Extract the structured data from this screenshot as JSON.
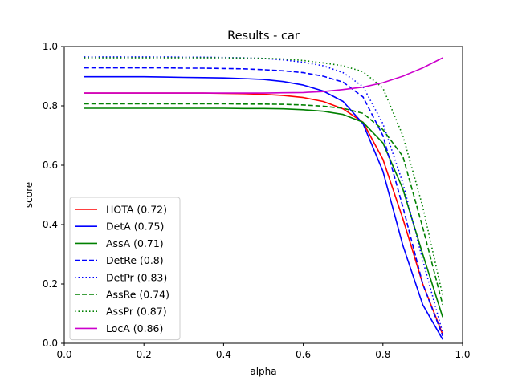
{
  "chart_data": {
    "type": "line",
    "title": "Results - car",
    "xlabel": "alpha",
    "ylabel": "score",
    "xlim": [
      0.0,
      1.0
    ],
    "ylim": [
      0.0,
      1.0
    ],
    "xticks": [
      "0.0",
      "0.2",
      "0.4",
      "0.6",
      "0.8",
      "1.0"
    ],
    "yticks": [
      "0.0",
      "0.2",
      "0.4",
      "0.6",
      "0.8",
      "1.0"
    ],
    "grid": false,
    "legend_position": "lower-left",
    "x": [
      0.05,
      0.1,
      0.15,
      0.2,
      0.25,
      0.3,
      0.35,
      0.4,
      0.45,
      0.5,
      0.55,
      0.6,
      0.65,
      0.7,
      0.75,
      0.8,
      0.85,
      0.9,
      0.95
    ],
    "series": [
      {
        "name": "HOTA (0.72)",
        "color": "#ff0000",
        "style": "solid",
        "values": [
          0.843,
          0.843,
          0.843,
          0.843,
          0.843,
          0.843,
          0.843,
          0.842,
          0.841,
          0.839,
          0.835,
          0.828,
          0.815,
          0.79,
          0.745,
          0.62,
          0.42,
          0.2,
          0.03
        ]
      },
      {
        "name": "DetA (0.75)",
        "color": "#0000ff",
        "style": "solid",
        "values": [
          0.898,
          0.898,
          0.898,
          0.898,
          0.897,
          0.896,
          0.895,
          0.894,
          0.892,
          0.889,
          0.882,
          0.87,
          0.85,
          0.815,
          0.74,
          0.58,
          0.33,
          0.13,
          0.013
        ]
      },
      {
        "name": "AssA (0.71)",
        "color": "#008000",
        "style": "solid",
        "values": [
          0.792,
          0.792,
          0.792,
          0.792,
          0.792,
          0.792,
          0.792,
          0.792,
          0.791,
          0.791,
          0.79,
          0.787,
          0.782,
          0.771,
          0.745,
          0.675,
          0.52,
          0.3,
          0.088
        ]
      },
      {
        "name": "DetRe (0.8)",
        "color": "#0000ff",
        "style": "dashed",
        "values": [
          0.928,
          0.928,
          0.928,
          0.928,
          0.928,
          0.927,
          0.927,
          0.926,
          0.925,
          0.922,
          0.918,
          0.912,
          0.9,
          0.88,
          0.83,
          0.7,
          0.46,
          0.2,
          0.025
        ]
      },
      {
        "name": "DetPr (0.83)",
        "color": "#0000ff",
        "style": "dotted",
        "values": [
          0.965,
          0.965,
          0.965,
          0.965,
          0.965,
          0.964,
          0.964,
          0.963,
          0.962,
          0.96,
          0.955,
          0.947,
          0.935,
          0.912,
          0.865,
          0.74,
          0.54,
          0.28,
          0.035
        ]
      },
      {
        "name": "AssRe (0.74)",
        "color": "#008000",
        "style": "dashed",
        "values": [
          0.807,
          0.807,
          0.807,
          0.807,
          0.807,
          0.807,
          0.807,
          0.807,
          0.806,
          0.806,
          0.805,
          0.803,
          0.799,
          0.792,
          0.775,
          0.72,
          0.63,
          0.39,
          0.13
        ]
      },
      {
        "name": "AssPr (0.87)",
        "color": "#008000",
        "style": "dotted",
        "values": [
          0.962,
          0.962,
          0.962,
          0.962,
          0.962,
          0.962,
          0.962,
          0.962,
          0.961,
          0.96,
          0.958,
          0.953,
          0.945,
          0.935,
          0.915,
          0.86,
          0.7,
          0.46,
          0.16
        ]
      },
      {
        "name": "LocA (0.86)",
        "color": "#cc00cc",
        "style": "solid",
        "values": [
          0.843,
          0.843,
          0.843,
          0.843,
          0.843,
          0.843,
          0.843,
          0.843,
          0.843,
          0.843,
          0.844,
          0.845,
          0.848,
          0.855,
          0.863,
          0.878,
          0.9,
          0.928,
          0.962
        ]
      }
    ]
  }
}
